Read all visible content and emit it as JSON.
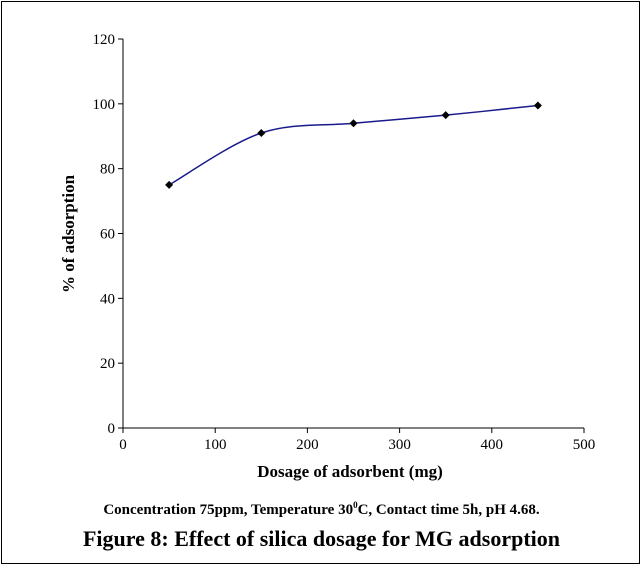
{
  "chart_data": {
    "type": "line",
    "x": [
      50,
      150,
      250,
      350,
      450
    ],
    "series": [
      {
        "values": [
          75,
          91,
          94,
          96.5,
          99.5
        ]
      }
    ],
    "xlabel": "Dosage of adsorbent (mg)",
    "ylabel": "% of adsorption",
    "xlim": [
      0,
      500
    ],
    "ylim": [
      0,
      120
    ],
    "xticks": [
      0,
      100,
      200,
      300,
      400,
      500
    ],
    "yticks": [
      0,
      20,
      40,
      60,
      80,
      100,
      120
    ],
    "grid": false,
    "line_color": "#1a1a8c",
    "marker_color": "#000000",
    "marker": "diamond",
    "smoothed": true
  },
  "conditions": {
    "before_sup": "Concentration 75ppm, Temperature 30",
    "sup": "0",
    "after_sup": "C, Contact time 5h, pH 4.68."
  },
  "caption": "Figure 8: Effect of silica dosage for MG adsorption"
}
